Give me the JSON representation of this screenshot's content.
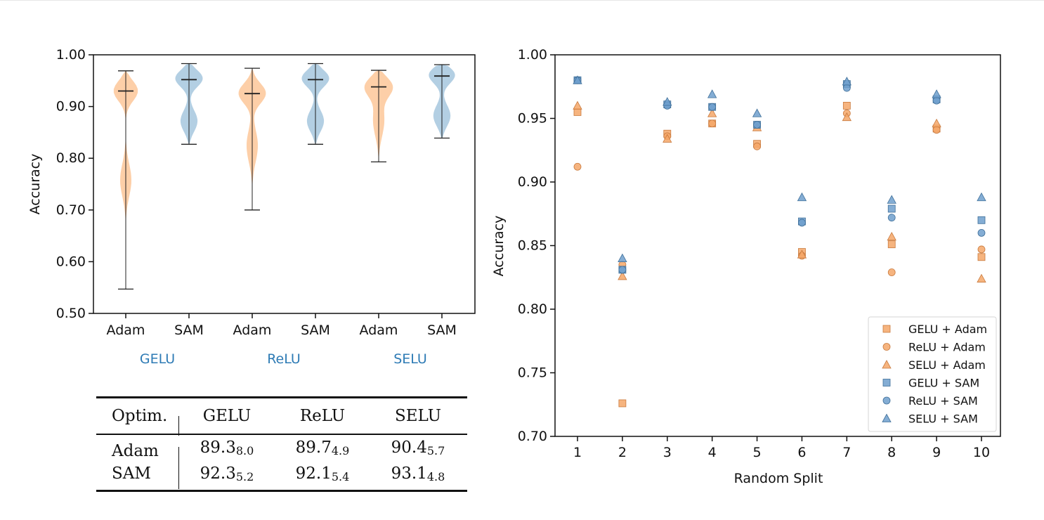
{
  "violin_chart": {
    "ylabel": "Accuracy",
    "yticks": [
      "0.50",
      "0.60",
      "0.70",
      "0.80",
      "0.90",
      "1.00"
    ],
    "ylim": [
      0.5,
      1.0
    ],
    "colors": {
      "adam": "#fdcfa8",
      "sam": "#b3cfe3",
      "line": "#222222",
      "group_label": "#2e7bb5"
    },
    "groups": [
      {
        "name": "GELU",
        "violins": [
          {
            "optimizer": "Adam",
            "min": 0.547,
            "max": 0.969,
            "median": 0.93
          },
          {
            "optimizer": "SAM",
            "min": 0.827,
            "max": 0.983,
            "median": 0.952
          }
        ]
      },
      {
        "name": "ReLU",
        "violins": [
          {
            "optimizer": "Adam",
            "min": 0.7,
            "max": 0.974,
            "median": 0.925
          },
          {
            "optimizer": "SAM",
            "min": 0.827,
            "max": 0.983,
            "median": 0.952
          }
        ]
      },
      {
        "name": "SELU",
        "violins": [
          {
            "optimizer": "Adam",
            "min": 0.793,
            "max": 0.97,
            "median": 0.938
          },
          {
            "optimizer": "SAM",
            "min": 0.839,
            "max": 0.981,
            "median": 0.959
          }
        ]
      }
    ]
  },
  "table": {
    "header": [
      "Optim.",
      "GELU",
      "ReLU",
      "SELU"
    ],
    "rows": [
      {
        "optimizer": "Adam",
        "cells": [
          {
            "mean": "89.3",
            "std": "8.0"
          },
          {
            "mean": "89.7",
            "std": "4.9"
          },
          {
            "mean": "90.4",
            "std": "5.7"
          }
        ]
      },
      {
        "optimizer": "SAM",
        "cells": [
          {
            "mean": "92.3",
            "std": "5.2"
          },
          {
            "mean": "92.1",
            "std": "5.4"
          },
          {
            "mean": "93.1",
            "std": "4.8"
          }
        ]
      }
    ]
  },
  "chart_data": {
    "type": "scatter",
    "xlabel": "Random Split",
    "ylabel": "Accuracy",
    "x": [
      1,
      2,
      3,
      4,
      5,
      6,
      7,
      8,
      9,
      10
    ],
    "xticks": [
      "1",
      "2",
      "3",
      "4",
      "5",
      "6",
      "7",
      "8",
      "9",
      "10"
    ],
    "yticks": [
      "0.70",
      "0.75",
      "0.80",
      "0.85",
      "0.90",
      "0.95",
      "1.00"
    ],
    "ylim": [
      0.7,
      1.0
    ],
    "legend_position": "bottom-right",
    "series": [
      {
        "name": "GELU + Adam",
        "marker": "square",
        "color": "#f5a768",
        "values": [
          0.955,
          0.726,
          0.938,
          0.946,
          0.93,
          0.845,
          0.96,
          0.851,
          0.942,
          0.841
        ]
      },
      {
        "name": "ReLU + Adam",
        "marker": "circle",
        "color": "#f5a768",
        "values": [
          0.912,
          0.835,
          0.936,
          0.946,
          0.928,
          0.842,
          0.954,
          0.829,
          0.941,
          0.847
        ]
      },
      {
        "name": "SELU + Adam",
        "marker": "triangle",
        "color": "#f5a768",
        "values": [
          0.96,
          0.826,
          0.934,
          0.954,
          0.943,
          0.843,
          0.951,
          0.857,
          0.946,
          0.824
        ]
      },
      {
        "name": "GELU + SAM",
        "marker": "square",
        "color": "#6f9fcc",
        "values": [
          0.98,
          0.831,
          0.961,
          0.959,
          0.945,
          0.869,
          0.977,
          0.879,
          0.965,
          0.87
        ]
      },
      {
        "name": "ReLU + SAM",
        "marker": "circle",
        "color": "#6f9fcc",
        "values": [
          0.98,
          0.831,
          0.96,
          0.959,
          0.945,
          0.868,
          0.974,
          0.872,
          0.964,
          0.86
        ]
      },
      {
        "name": "SELU + SAM",
        "marker": "triangle",
        "color": "#6f9fcc",
        "values": [
          0.98,
          0.84,
          0.963,
          0.969,
          0.954,
          0.888,
          0.979,
          0.886,
          0.969,
          0.888
        ]
      }
    ]
  }
}
